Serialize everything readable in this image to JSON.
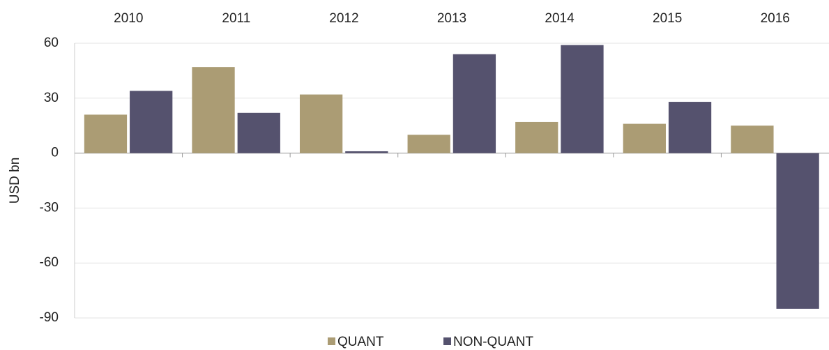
{
  "chart_data": {
    "type": "bar",
    "y_label": "USD bn",
    "categories": [
      "2010",
      "2011",
      "2012",
      "2013",
      "2014",
      "2015",
      "2016"
    ],
    "series": [
      {
        "name": "QUANT",
        "color": "#ab9c74",
        "values": [
          21,
          47,
          32,
          10,
          17,
          16,
          15
        ]
      },
      {
        "name": "NON-QUANT",
        "color": "#55526e",
        "values": [
          34,
          22,
          1,
          54,
          59,
          28,
          -85
        ]
      }
    ],
    "ylim": [
      -90,
      60
    ],
    "yticks": [
      -90,
      -60,
      -30,
      0,
      30,
      60
    ],
    "grid": true,
    "legend": "bottom"
  }
}
